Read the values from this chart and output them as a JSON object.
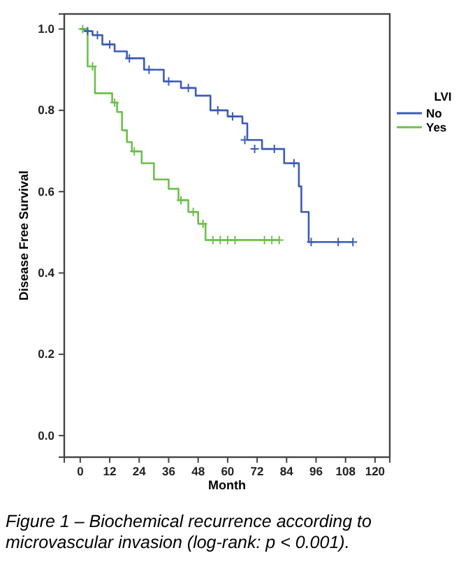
{
  "chart_data": {
    "type": "step",
    "xlabel": "Month",
    "ylabel": "Disease Free Survival",
    "legend_title": "LVI",
    "legend": "right",
    "annotations": [
      "Figure 1 – Biochemical recurrence according to microvascular invasion (log-rank: p < 0.001)."
    ],
    "xlim": [
      -6.5,
      126
    ],
    "xticks": [
      0,
      12,
      24,
      36,
      48,
      60,
      72,
      84,
      96,
      108,
      120
    ],
    "ylim": [
      -0.053,
      1.037
    ],
    "yticks": [
      {
        "value": 0,
        "label": "0.0"
      },
      {
        "value": 0.2,
        "label": "0.2"
      },
      {
        "value": 0.4,
        "label": "0.4"
      },
      {
        "value": 0.6,
        "label": "0.6"
      },
      {
        "value": 0.8,
        "label": "0.8"
      },
      {
        "value": 1,
        "label": "1.0"
      }
    ],
    "grid": false,
    "line_style": "solid",
    "series": [
      {
        "name": "No",
        "color": "#3a5bb8",
        "x": [
          0,
          2,
          5,
          9,
          14,
          19,
          26,
          34,
          41,
          47,
          53,
          60,
          66,
          68,
          74,
          83,
          89,
          90,
          93,
          111
        ],
        "values": [
          1,
          0.995,
          0.985,
          0.962,
          0.945,
          0.928,
          0.9,
          0.871,
          0.855,
          0.836,
          0.8,
          0.785,
          0.768,
          0.727,
          0.705,
          0.67,
          0.613,
          0.55,
          0.476,
          0.476
        ]
      },
      {
        "name": "Yes",
        "color": "#6cc04a",
        "x": [
          0,
          3,
          6,
          13,
          15,
          17,
          19,
          21,
          25,
          30,
          36,
          40,
          44,
          48,
          51,
          81
        ],
        "values": [
          1,
          0.908,
          0.842,
          0.819,
          0.796,
          0.751,
          0.722,
          0.699,
          0.67,
          0.63,
          0.607,
          0.579,
          0.55,
          0.521,
          0.481,
          0.481
        ]
      },
      {
        "type": "scatter",
        "marker": "cross",
        "color": "#3a5bb8",
        "x": [
          3,
          7,
          12,
          20,
          28,
          36,
          44,
          56,
          62,
          67,
          71,
          79,
          87,
          94,
          105,
          111
        ],
        "values": [
          0.995,
          0.985,
          0.962,
          0.928,
          0.9,
          0.871,
          0.855,
          0.8,
          0.785,
          0.727,
          0.705,
          0.705,
          0.67,
          0.476,
          0.476,
          0.476
        ]
      },
      {
        "type": "scatter",
        "marker": "cross",
        "color": "#6cc04a",
        "x": [
          1,
          5,
          14,
          22,
          41,
          46,
          50,
          54,
          57,
          60,
          63,
          75,
          78,
          81
        ],
        "values": [
          1,
          0.908,
          0.819,
          0.699,
          0.579,
          0.55,
          0.521,
          0.481,
          0.481,
          0.481,
          0.481,
          0.481,
          0.481,
          0.481
        ]
      }
    ]
  }
}
